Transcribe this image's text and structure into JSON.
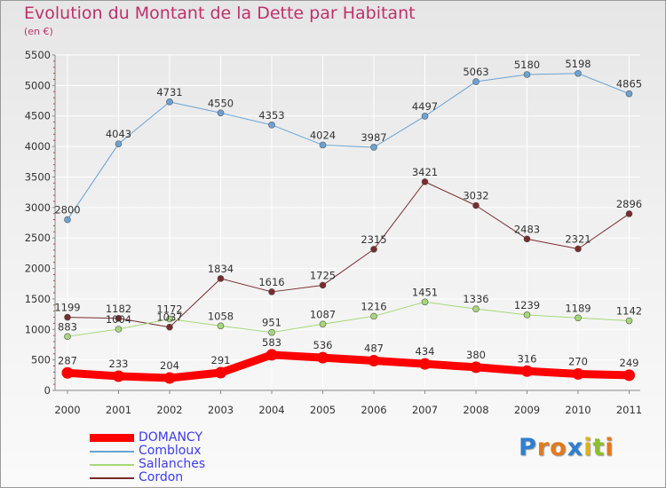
{
  "title": "Evolution du Montant de la Dette par Habitant",
  "subtitle": "(en €)",
  "logo": {
    "text": "Proxiti",
    "letters": [
      {
        "ch": "P",
        "color": "#2f7fd0"
      },
      {
        "ch": "r",
        "color": "#e07a1f"
      },
      {
        "ch": "o",
        "color": "#e07a1f"
      },
      {
        "ch": "x",
        "color": "#2f7fd0"
      },
      {
        "ch": "i",
        "color": "#e0b020"
      },
      {
        "ch": "t",
        "color": "#8cbf2a"
      },
      {
        "ch": "i",
        "color": "#e07a1f"
      }
    ]
  },
  "chart_data": {
    "type": "line",
    "categories": [
      "2000",
      "2001",
      "2002",
      "2003",
      "2004",
      "2005",
      "2006",
      "2007",
      "2008",
      "2009",
      "2010",
      "2011"
    ],
    "ylim": [
      0,
      5500
    ],
    "yticks": [
      0,
      500,
      1000,
      1500,
      2000,
      2500,
      3000,
      3500,
      4000,
      4500,
      5000,
      5500
    ],
    "grid": true,
    "legend_position": "bottom-left",
    "series": [
      {
        "name": "DOMANCY",
        "color": "#ff0000",
        "width": 9,
        "marker": 6.5,
        "values": [
          287,
          233,
          204,
          291,
          583,
          536,
          487,
          434,
          380,
          316,
          270,
          249
        ]
      },
      {
        "name": "Combloux",
        "color": "#6aa3d5",
        "width": 1,
        "marker": 3.5,
        "values": [
          2800,
          4043,
          4731,
          4550,
          4353,
          4024,
          3987,
          4497,
          5063,
          5180,
          5198,
          4865
        ]
      },
      {
        "name": "Sallanches",
        "color": "#a6d879",
        "width": 1,
        "marker": 3.5,
        "values": [
          883,
          1004,
          1172,
          1058,
          951,
          1087,
          1216,
          1451,
          1336,
          1239,
          1189,
          1142
        ]
      },
      {
        "name": "Cordon",
        "color": "#7a2b2b",
        "width": 1,
        "marker": 3.5,
        "values": [
          1199,
          1182,
          1037,
          1834,
          1616,
          1725,
          2315,
          3421,
          3032,
          2483,
          2321,
          2896
        ]
      }
    ]
  }
}
